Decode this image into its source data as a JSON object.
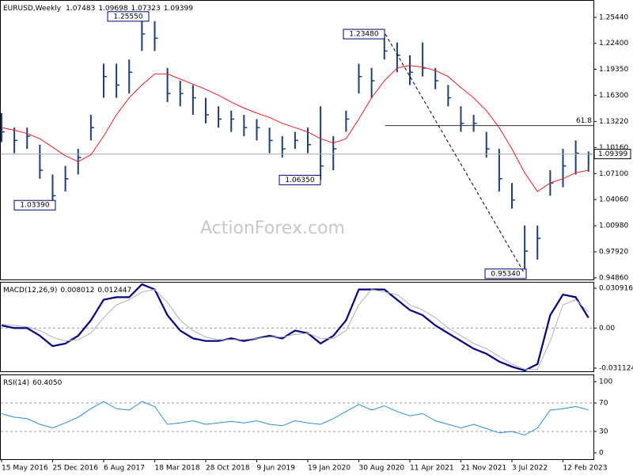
{
  "chart_data": [
    {
      "type": "ohlc",
      "title": "EURUSD,Weekly",
      "ohlc": [
        1.07483,
        1.09698,
        1.07323,
        1.09399
      ],
      "watermark": "ActionForex.com",
      "ylim": [
        0.9458,
        1.2739
      ],
      "yticks": [
        {
          "value": 1.2544,
          "label": "1.25440"
        },
        {
          "value": 1.224,
          "label": "1.22400"
        },
        {
          "value": 1.1935,
          "label": "1.19350"
        },
        {
          "value": 1.163,
          "label": "1.16300"
        },
        {
          "value": 1.1322,
          "label": "1.13220"
        },
        {
          "value": 1.1016,
          "label": "1.10160"
        },
        {
          "value": 1.071,
          "label": "1.07100"
        },
        {
          "value": 1.0406,
          "label": "1.04060"
        },
        {
          "value": 1.0098,
          "label": "1.00980"
        },
        {
          "value": 0.9792,
          "label": "0.97920"
        },
        {
          "value": 0.9486,
          "label": "0.94860"
        }
      ],
      "bar_color": "#1c3f6e",
      "high": [
        1.142,
        1.125,
        1.125,
        1.105,
        1.07,
        1.08,
        1.1,
        1.14,
        1.2,
        1.2,
        1.205,
        1.2555,
        1.25,
        1.195,
        1.18,
        1.175,
        1.16,
        1.15,
        1.145,
        1.14,
        1.135,
        1.125,
        1.115,
        1.12,
        1.125,
        1.15,
        1.115,
        1.145,
        1.2,
        1.195,
        1.2348,
        1.225,
        1.21,
        1.225,
        1.195,
        1.175,
        1.15,
        1.14,
        1.12,
        1.1,
        1.06,
        1.01,
        1.01,
        1.075,
        1.1,
        1.11,
        1.09698
      ],
      "low": [
        1.108,
        1.095,
        1.1,
        1.065,
        1.0339,
        1.05,
        1.07,
        1.11,
        1.16,
        1.16,
        1.165,
        1.215,
        1.215,
        1.155,
        1.15,
        1.14,
        1.13,
        1.125,
        1.12,
        1.115,
        1.11,
        1.095,
        1.09,
        1.1,
        1.095,
        1.0635,
        1.075,
        1.12,
        1.165,
        1.16,
        1.205,
        1.19,
        1.175,
        1.185,
        1.17,
        1.15,
        1.12,
        1.12,
        1.09,
        1.05,
        1.03,
        0.9534,
        0.97,
        1.045,
        1.055,
        1.07,
        1.07323
      ],
      "close": [
        1.12,
        1.11,
        1.115,
        1.075,
        1.045,
        1.065,
        1.09,
        1.125,
        1.185,
        1.175,
        1.19,
        1.235,
        1.23,
        1.165,
        1.165,
        1.16,
        1.14,
        1.135,
        1.135,
        1.125,
        1.125,
        1.11,
        1.1,
        1.11,
        1.105,
        1.08,
        1.1,
        1.135,
        1.185,
        1.18,
        1.215,
        1.21,
        1.19,
        1.195,
        1.18,
        1.16,
        1.13,
        1.13,
        1.1,
        1.065,
        1.04,
        0.98,
        0.995,
        1.06,
        1.08,
        1.095,
        1.09399
      ],
      "series": [
        {
          "color": "#e0202a",
          "values": [
            1.125,
            1.122,
            1.118,
            1.112,
            1.102,
            1.092,
            1.085,
            1.093,
            1.115,
            1.14,
            1.16,
            1.175,
            1.188,
            1.188,
            1.182,
            1.176,
            1.17,
            1.163,
            1.155,
            1.148,
            1.142,
            1.137,
            1.13,
            1.125,
            1.12,
            1.112,
            1.107,
            1.112,
            1.135,
            1.16,
            1.18,
            1.195,
            1.198,
            1.196,
            1.192,
            1.185,
            1.172,
            1.16,
            1.145,
            1.125,
            1.1,
            1.072,
            1.05,
            1.06,
            1.065,
            1.072,
            1.075
          ]
        }
      ],
      "annotations": [
        {
          "value": 1.2555,
          "label": "1.25550"
        },
        {
          "value": 1.0339,
          "label": "1.03390"
        },
        {
          "value": 1.0635,
          "label": "1.06350"
        },
        {
          "value": 1.2348,
          "label": "1.23480"
        },
        {
          "value": 0.9534,
          "label": "0.95340"
        }
      ],
      "fib": {
        "label": "61.8",
        "level": 1.1274
      }
    },
    {
      "type": "line",
      "title": "MACD(12,26,9)",
      "readout": [
        0.008012,
        0.012447
      ],
      "ylim": [
        -0.0342,
        0.0353
      ],
      "yticks": [
        0.030916,
        {
          "value": 0,
          "label": "0.00"
        },
        -0.031124
      ],
      "series": [
        {
          "color": "#00007a",
          "values": [
            0.002,
            0,
            0,
            -0.006,
            -0.014,
            -0.012,
            -0.006,
            0.006,
            0.022,
            0.024,
            0.024,
            0.034,
            0.03,
            0.01,
            -0.002,
            -0.008,
            -0.01,
            -0.01,
            -0.008,
            -0.01,
            -0.008,
            -0.006,
            -0.008,
            -0.002,
            -0.004,
            -0.012,
            -0.006,
            0.006,
            0.03,
            0.03,
            0.03,
            0.022,
            0.014,
            0.01,
            0.002,
            -0.004,
            -0.01,
            -0.016,
            -0.02,
            -0.026,
            -0.03,
            -0.033,
            -0.028,
            0.01,
            0.026,
            0.024,
            0.008012
          ]
        },
        {
          "color": "#b0b0b0",
          "values": [
            0.003,
            0.002,
            0.001,
            -0.002,
            -0.007,
            -0.01,
            -0.009,
            -0.004,
            0.008,
            0.018,
            0.022,
            0.028,
            0.03,
            0.02,
            0.006,
            -0.002,
            -0.007,
            -0.009,
            -0.009,
            -0.009,
            -0.008,
            -0.007,
            -0.007,
            -0.005,
            -0.004,
            -0.008,
            -0.008,
            -0.002,
            0.018,
            0.03,
            0.028,
            0.026,
            0.018,
            0.014,
            0.008,
            0,
            -0.006,
            -0.012,
            -0.016,
            -0.022,
            -0.028,
            -0.032,
            -0.032,
            -0.01,
            0.018,
            0.022,
            0.012447
          ]
        }
      ]
    },
    {
      "type": "line",
      "title": "RSI(14)",
      "readout": {
        "value": 60.405,
        "label": "60.4050"
      },
      "ylim": [
        -9,
        109
      ],
      "yticks": [
        100,
        70,
        30,
        0
      ],
      "levels": [
        70,
        30
      ],
      "categories": [
        "15 May 2016",
        null,
        null,
        null,
        "25 Dec 2016",
        null,
        null,
        null,
        "6 Aug 2017",
        null,
        null,
        null,
        "18 Mar 2018",
        null,
        null,
        null,
        "28 Oct 2018",
        null,
        null,
        null,
        "9 Jun 2019",
        null,
        null,
        null,
        "19 Jan 2020",
        null,
        null,
        null,
        "30 Aug 2020",
        null,
        null,
        null,
        "11 Apr 2021",
        null,
        null,
        null,
        "21 Nov 2021",
        null,
        null,
        null,
        "3 Jul 2022",
        null,
        null,
        null,
        "12 Feb 2023",
        null,
        null
      ],
      "series": [
        {
          "color": "#2a8fd6",
          "values": [
            55,
            50,
            48,
            40,
            35,
            42,
            50,
            62,
            72,
            62,
            60,
            72,
            65,
            40,
            42,
            45,
            40,
            42,
            44,
            42,
            45,
            40,
            38,
            45,
            42,
            40,
            48,
            58,
            68,
            60,
            66,
            58,
            52,
            55,
            45,
            40,
            35,
            40,
            34,
            28,
            30,
            25,
            35,
            60,
            62,
            65,
            60.405
          ]
        }
      ]
    }
  ]
}
